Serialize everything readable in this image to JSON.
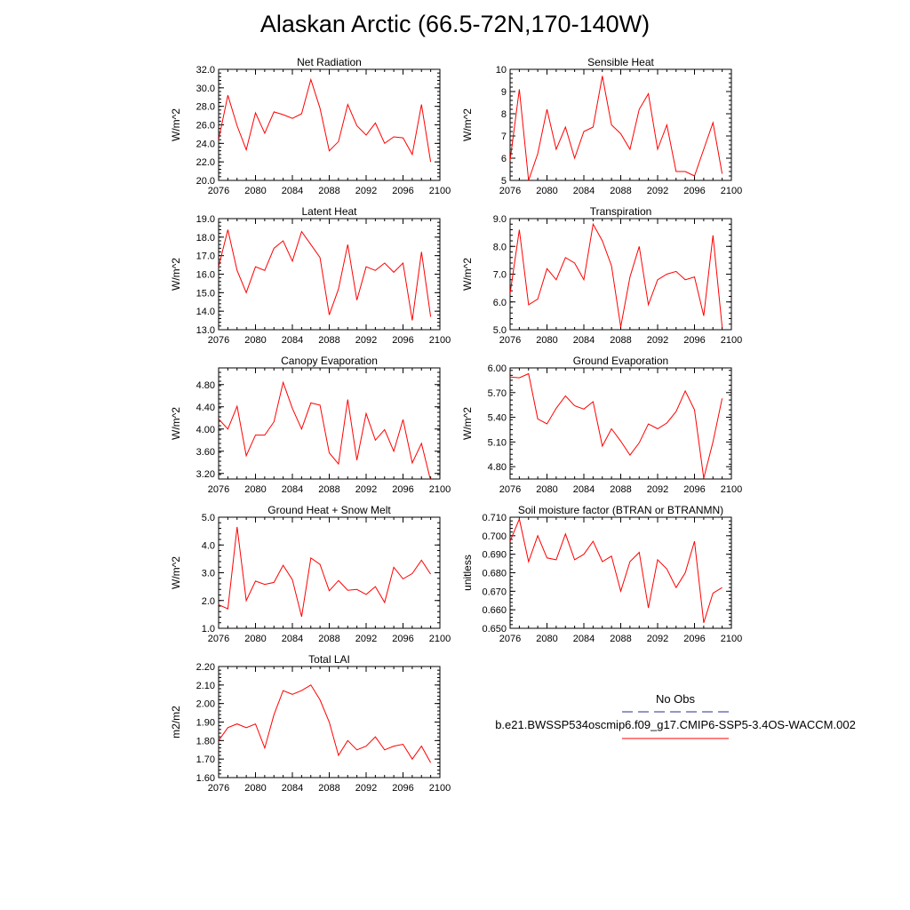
{
  "figure": {
    "title": "Alaskan Arctic (66.5-72N,170-140W)"
  },
  "legend": {
    "entries": [
      {
        "label": "No Obs",
        "color": "#2b2b8f",
        "style": "dashed"
      },
      {
        "label": "b.e21.BWSSP534oscmip6.f09_g17.CMIP6-SSP5-3.4OS-WACCM.002",
        "color": "#ff0000",
        "style": "solid"
      }
    ]
  },
  "colors": {
    "series": "#ff0000",
    "axis": "#000000"
  },
  "chart_data": [
    {
      "type": "line",
      "title": "Net Radiation",
      "xlabel": "",
      "ylabel": "W/m^2",
      "xlim": [
        2076,
        2100
      ],
      "ylim": [
        20.0,
        32.0
      ],
      "xticks": [
        2076,
        2080,
        2084,
        2088,
        2092,
        2096,
        2100
      ],
      "yticks": [
        20.0,
        22.0,
        24.0,
        26.0,
        28.0,
        30.0,
        32.0
      ],
      "ytick_labels": [
        "20.0",
        "22.0",
        "24.0",
        "26.0",
        "28.0",
        "30.0",
        "32.0"
      ],
      "x": [
        2076,
        2077,
        2078,
        2079,
        2080,
        2081,
        2082,
        2083,
        2084,
        2085,
        2086,
        2087,
        2088,
        2089,
        2090,
        2091,
        2092,
        2093,
        2094,
        2095,
        2096,
        2097,
        2098,
        2099
      ],
      "series": [
        {
          "values": [
            24.4,
            29.2,
            25.9,
            23.3,
            27.3,
            25.1,
            27.4,
            27.1,
            26.7,
            27.2,
            30.9,
            27.8,
            23.2,
            24.2,
            28.2,
            25.9,
            24.9,
            26.2,
            24.0,
            24.7,
            24.6,
            22.8,
            28.2,
            22.0
          ]
        }
      ]
    },
    {
      "type": "line",
      "title": "Sensible Heat",
      "xlabel": "",
      "ylabel": "W/m^2",
      "xlim": [
        2076,
        2100
      ],
      "ylim": [
        5,
        10
      ],
      "xticks": [
        2076,
        2080,
        2084,
        2088,
        2092,
        2096,
        2100
      ],
      "yticks": [
        5,
        6,
        7,
        8,
        9,
        10
      ],
      "ytick_labels": [
        "5",
        "6",
        "7",
        "8",
        "9",
        "10"
      ],
      "x": [
        2076,
        2077,
        2078,
        2079,
        2080,
        2081,
        2082,
        2083,
        2084,
        2085,
        2086,
        2087,
        2088,
        2089,
        2090,
        2091,
        2092,
        2093,
        2094,
        2095,
        2096,
        2097,
        2098,
        2099
      ],
      "series": [
        {
          "values": [
            5.9,
            9.1,
            5.0,
            6.2,
            8.2,
            6.4,
            7.4,
            6.0,
            7.2,
            7.4,
            9.7,
            7.5,
            7.1,
            6.4,
            8.2,
            8.9,
            6.4,
            7.5,
            5.4,
            5.4,
            5.2,
            6.4,
            7.6,
            5.3
          ]
        }
      ]
    },
    {
      "type": "line",
      "title": "Latent Heat",
      "xlabel": "",
      "ylabel": "W/m^2",
      "xlim": [
        2076,
        2100
      ],
      "ylim": [
        13.0,
        19.0
      ],
      "xticks": [
        2076,
        2080,
        2084,
        2088,
        2092,
        2096,
        2100
      ],
      "yticks": [
        13.0,
        14.0,
        15.0,
        16.0,
        17.0,
        18.0,
        19.0
      ],
      "ytick_labels": [
        "13.0",
        "14.0",
        "15.0",
        "16.0",
        "17.0",
        "18.0",
        "19.0"
      ],
      "x": [
        2076,
        2077,
        2078,
        2079,
        2080,
        2081,
        2082,
        2083,
        2084,
        2085,
        2086,
        2087,
        2088,
        2089,
        2090,
        2091,
        2092,
        2093,
        2094,
        2095,
        2096,
        2097,
        2098,
        2099
      ],
      "series": [
        {
          "values": [
            16.4,
            18.4,
            16.2,
            15.0,
            16.4,
            16.2,
            17.4,
            17.8,
            16.7,
            18.3,
            17.6,
            16.9,
            13.8,
            15.2,
            17.6,
            14.6,
            16.4,
            16.2,
            16.6,
            16.1,
            16.6,
            13.5,
            17.2,
            13.7
          ]
        }
      ]
    },
    {
      "type": "line",
      "title": "Transpiration",
      "xlabel": "",
      "ylabel": "W/m^2",
      "xlim": [
        2076,
        2100
      ],
      "ylim": [
        5.0,
        9.0
      ],
      "xticks": [
        2076,
        2080,
        2084,
        2088,
        2092,
        2096,
        2100
      ],
      "yticks": [
        5.0,
        6.0,
        7.0,
        8.0,
        9.0
      ],
      "ytick_labels": [
        "5.0",
        "6.0",
        "7.0",
        "8.0",
        "9.0"
      ],
      "x": [
        2076,
        2077,
        2078,
        2079,
        2080,
        2081,
        2082,
        2083,
        2084,
        2085,
        2086,
        2087,
        2088,
        2089,
        2090,
        2091,
        2092,
        2093,
        2094,
        2095,
        2096,
        2097,
        2098,
        2099
      ],
      "series": [
        {
          "values": [
            6.3,
            8.6,
            5.9,
            6.1,
            7.2,
            6.8,
            7.6,
            7.4,
            6.8,
            8.8,
            8.2,
            7.3,
            5.1,
            6.9,
            8.0,
            5.9,
            6.8,
            7.0,
            7.1,
            6.8,
            6.9,
            5.5,
            8.4,
            5.1
          ]
        }
      ]
    },
    {
      "type": "line",
      "title": "Canopy Evaporation",
      "xlabel": "",
      "ylabel": "W/m^2",
      "xlim": [
        2076,
        2100
      ],
      "ylim": [
        3.1,
        5.1
      ],
      "xticks": [
        2076,
        2080,
        2084,
        2088,
        2092,
        2096,
        2100
      ],
      "yticks": [
        3.2,
        3.6,
        4.0,
        4.4,
        4.8
      ],
      "ytick_labels": [
        "3.20",
        "3.60",
        "4.00",
        "4.40",
        "4.80"
      ],
      "x": [
        2076,
        2077,
        2078,
        2079,
        2080,
        2081,
        2082,
        2083,
        2084,
        2085,
        2086,
        2087,
        2088,
        2089,
        2090,
        2091,
        2092,
        2093,
        2094,
        2095,
        2096,
        2097,
        2098,
        2099
      ],
      "series": [
        {
          "values": [
            4.18,
            4.0,
            4.41,
            3.52,
            3.89,
            3.89,
            4.13,
            4.84,
            4.37,
            4.0,
            4.47,
            4.43,
            3.57,
            3.37,
            4.53,
            3.44,
            4.28,
            3.8,
            3.99,
            3.6,
            4.17,
            3.39,
            3.74,
            3.07
          ]
        }
      ]
    },
    {
      "type": "line",
      "title": "Ground Evaporation",
      "xlabel": "",
      "ylabel": "W/m^2",
      "xlim": [
        2076,
        2100
      ],
      "ylim": [
        4.65,
        6.0
      ],
      "xticks": [
        2076,
        2080,
        2084,
        2088,
        2092,
        2096,
        2100
      ],
      "yticks": [
        4.8,
        5.1,
        5.4,
        5.7,
        6.0
      ],
      "ytick_labels": [
        "4.80",
        "5.10",
        "5.40",
        "5.70",
        "6.00"
      ],
      "x": [
        2076,
        2077,
        2078,
        2079,
        2080,
        2081,
        2082,
        2083,
        2084,
        2085,
        2086,
        2087,
        2088,
        2089,
        2090,
        2091,
        2092,
        2093,
        2094,
        2095,
        2096,
        2097,
        2098,
        2099
      ],
      "series": [
        {
          "values": [
            5.89,
            5.88,
            5.93,
            5.38,
            5.32,
            5.51,
            5.66,
            5.54,
            5.5,
            5.59,
            5.05,
            5.26,
            5.11,
            4.94,
            5.09,
            5.32,
            5.26,
            5.33,
            5.47,
            5.72,
            5.49,
            4.66,
            5.1,
            5.63
          ]
        }
      ]
    },
    {
      "type": "line",
      "title": "Ground Heat + Snow Melt",
      "xlabel": "",
      "ylabel": "W/m^2",
      "xlim": [
        2076,
        2100
      ],
      "ylim": [
        1.0,
        5.0
      ],
      "xticks": [
        2076,
        2080,
        2084,
        2088,
        2092,
        2096,
        2100
      ],
      "yticks": [
        1.0,
        2.0,
        3.0,
        4.0,
        5.0
      ],
      "ytick_labels": [
        "1.0",
        "2.0",
        "3.0",
        "4.0",
        "5.0"
      ],
      "x": [
        2076,
        2077,
        2078,
        2079,
        2080,
        2081,
        2082,
        2083,
        2084,
        2085,
        2086,
        2087,
        2088,
        2089,
        2090,
        2091,
        2092,
        2093,
        2094,
        2095,
        2096,
        2097,
        2098,
        2099
      ],
      "series": [
        {
          "values": [
            1.85,
            1.7,
            4.65,
            2.0,
            2.7,
            2.58,
            2.65,
            3.27,
            2.75,
            1.42,
            3.53,
            3.3,
            2.35,
            2.72,
            2.37,
            2.4,
            2.22,
            2.5,
            1.93,
            3.2,
            2.78,
            2.97,
            3.45,
            2.95
          ]
        }
      ]
    },
    {
      "type": "line",
      "title": "Soil moisture factor (BTRAN or BTRANMN)",
      "xlabel": "",
      "ylabel": "unitless",
      "xlim": [
        2076,
        2100
      ],
      "ylim": [
        0.65,
        0.71
      ],
      "xticks": [
        2076,
        2080,
        2084,
        2088,
        2092,
        2096,
        2100
      ],
      "yticks": [
        0.65,
        0.66,
        0.67,
        0.68,
        0.69,
        0.7,
        0.71
      ],
      "ytick_labels": [
        "0.650",
        "0.660",
        "0.670",
        "0.680",
        "0.690",
        "0.700",
        "0.710"
      ],
      "x": [
        2076,
        2077,
        2078,
        2079,
        2080,
        2081,
        2082,
        2083,
        2084,
        2085,
        2086,
        2087,
        2088,
        2089,
        2090,
        2091,
        2092,
        2093,
        2094,
        2095,
        2096,
        2097,
        2098,
        2099
      ],
      "series": [
        {
          "values": [
            0.697,
            0.709,
            0.686,
            0.7,
            0.688,
            0.687,
            0.701,
            0.687,
            0.69,
            0.697,
            0.686,
            0.689,
            0.67,
            0.686,
            0.691,
            0.661,
            0.687,
            0.682,
            0.672,
            0.68,
            0.697,
            0.653,
            0.669,
            0.672
          ]
        }
      ]
    },
    {
      "type": "line",
      "title": "Total LAI",
      "xlabel": "",
      "ylabel": "m2/m2",
      "xlim": [
        2076,
        2100
      ],
      "ylim": [
        1.6,
        2.2
      ],
      "xticks": [
        2076,
        2080,
        2084,
        2088,
        2092,
        2096,
        2100
      ],
      "yticks": [
        1.6,
        1.7,
        1.8,
        1.9,
        2.0,
        2.1,
        2.2
      ],
      "ytick_labels": [
        "1.60",
        "1.70",
        "1.80",
        "1.90",
        "2.00",
        "2.10",
        "2.20"
      ],
      "x": [
        2076,
        2077,
        2078,
        2079,
        2080,
        2081,
        2082,
        2083,
        2084,
        2085,
        2086,
        2087,
        2088,
        2089,
        2090,
        2091,
        2092,
        2093,
        2094,
        2095,
        2096,
        2097,
        2098,
        2099
      ],
      "series": [
        {
          "values": [
            1.8,
            1.87,
            1.89,
            1.87,
            1.89,
            1.76,
            1.94,
            2.07,
            2.05,
            2.07,
            2.1,
            2.02,
            1.9,
            1.72,
            1.8,
            1.75,
            1.77,
            1.82,
            1.75,
            1.77,
            1.78,
            1.7,
            1.77,
            1.68
          ]
        }
      ]
    }
  ]
}
